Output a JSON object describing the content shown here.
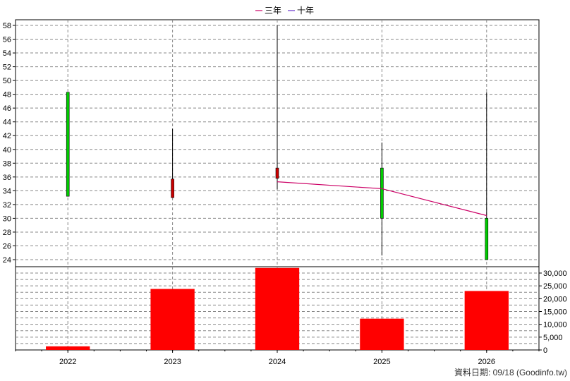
{
  "legend": [
    {
      "label": "三年",
      "color": "#cc0066"
    },
    {
      "label": "十年",
      "color": "#6633cc"
    }
  ],
  "footer": "資料日期: 09/18  (Goodinfo.tw)",
  "chart_data": {
    "type": "candlestick+bar",
    "categories": [
      "2022",
      "2023",
      "2024",
      "2025",
      "2026"
    ],
    "price_axis": {
      "min": 24,
      "max": 58,
      "step": 2,
      "side": "left"
    },
    "volume_axis": {
      "min": 0,
      "max": 30000,
      "step": 5000,
      "side": "right"
    },
    "candles": [
      {
        "x": "2022",
        "open": 33.2,
        "close": 48.3,
        "high": 48.3,
        "low": 33.2,
        "color": "#00cc00"
      },
      {
        "x": "2023",
        "open": 35.7,
        "close": 33.0,
        "high": 43.0,
        "low": 33.0,
        "color": "#cc0000"
      },
      {
        "x": "2024",
        "open": 37.3,
        "close": 35.8,
        "high": 58.0,
        "low": 34.2,
        "color": "#cc0000"
      },
      {
        "x": "2025",
        "open": 30.0,
        "close": 37.3,
        "high": 41.0,
        "low": 24.6,
        "color": "#00cc00"
      },
      {
        "x": "2026",
        "open": 24.0,
        "close": 30.0,
        "high": 48.3,
        "low": 24.0,
        "color": "#00cc00"
      }
    ],
    "three_year_line": [
      {
        "x": "2024",
        "y": 35.3
      },
      {
        "x": "2025",
        "y": 34.3
      },
      {
        "x": "2026",
        "y": 30.4
      }
    ],
    "volume": [
      1400,
      23800,
      32000,
      12200,
      23000
    ],
    "volume_color": "#ff0000",
    "grid": true,
    "legend_position": "top-center"
  }
}
